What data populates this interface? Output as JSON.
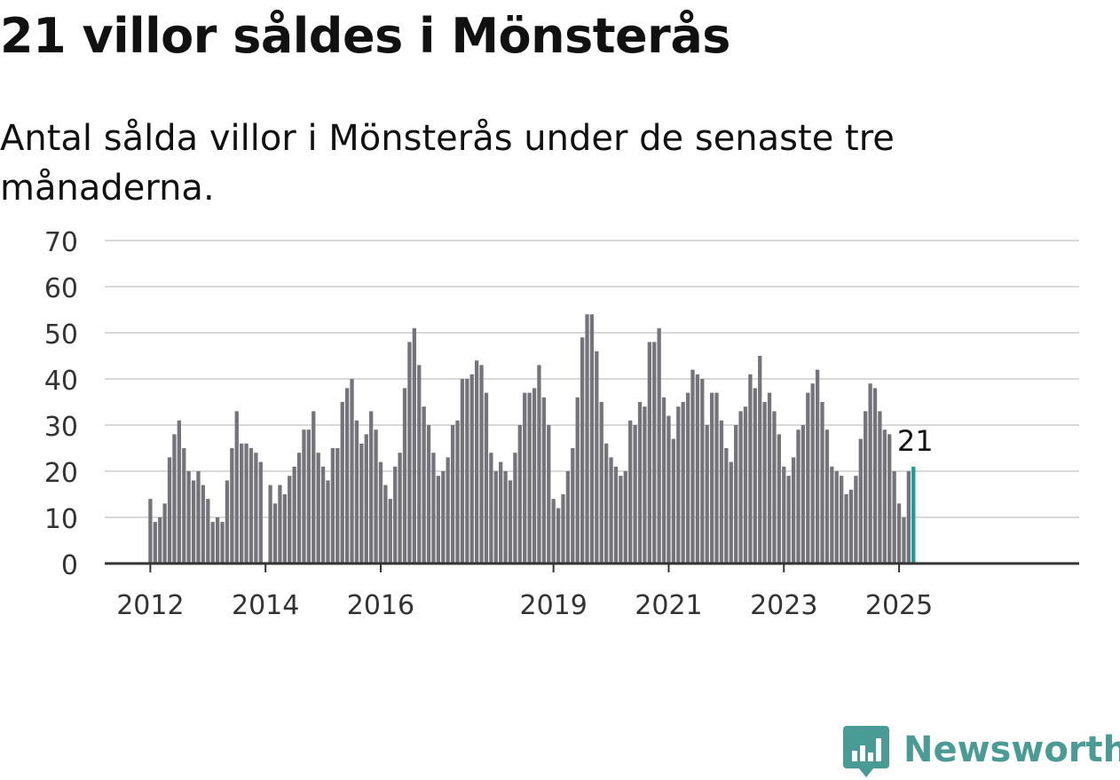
{
  "title": "21 villor såldes i Mönsterås",
  "subtitle": "Antal sålda villor i Mönsterås under de senaste tre månaderna.",
  "brand": {
    "name": "Newsworthy",
    "color": "#4a9a95",
    "icon": "newsworthy-logo-icon"
  },
  "colors": {
    "bar": "#75747a",
    "highlight": "#1a9e97",
    "grid": "#d9d9d9",
    "axis": "#333333",
    "text": "#333333"
  },
  "chart_data": {
    "type": "bar",
    "title": "21 villor såldes i Mönsterås",
    "subtitle": "Antal sålda villor i Mönsterås under de senaste tre månaderna.",
    "xlabel": "",
    "ylabel": "",
    "ylim": [
      0,
      70
    ],
    "yticks": [
      0,
      10,
      20,
      30,
      40,
      50,
      60,
      70
    ],
    "x_tick_labels": [
      "2012",
      "2014",
      "2016",
      "2019",
      "2021",
      "2023",
      "2025"
    ],
    "grid": true,
    "start": "2012-01",
    "frequency": "monthly",
    "values": [
      14,
      9,
      10,
      13,
      23,
      28,
      31,
      25,
      20,
      18,
      20,
      17,
      14,
      9,
      10,
      9,
      18,
      25,
      33,
      26,
      26,
      25,
      24,
      22,
      null,
      17,
      13,
      17,
      15,
      19,
      21,
      24,
      29,
      29,
      33,
      24,
      21,
      18,
      25,
      25,
      35,
      38,
      40,
      31,
      26,
      28,
      33,
      29,
      22,
      17,
      14,
      21,
      24,
      38,
      48,
      51,
      43,
      34,
      30,
      24,
      19,
      20,
      23,
      30,
      31,
      40,
      40,
      41,
      44,
      43,
      37,
      24,
      20,
      22,
      20,
      18,
      24,
      30,
      37,
      37,
      38,
      43,
      36,
      30,
      14,
      12,
      15,
      20,
      25,
      36,
      49,
      54,
      54,
      46,
      35,
      26,
      23,
      21,
      19,
      20,
      31,
      30,
      35,
      34,
      48,
      48,
      51,
      36,
      32,
      27,
      34,
      35,
      37,
      42,
      41,
      40,
      30,
      37,
      37,
      31,
      25,
      22,
      30,
      33,
      34,
      41,
      38,
      45,
      35,
      37,
      33,
      28,
      21,
      19,
      23,
      29,
      30,
      37,
      39,
      42,
      35,
      29,
      21,
      20,
      19,
      15,
      16,
      19,
      27,
      33,
      39,
      38,
      33,
      29,
      28,
      20,
      13,
      10,
      20,
      21
    ],
    "highlight": {
      "date": "2025-04",
      "value": 21,
      "label": "21"
    }
  }
}
